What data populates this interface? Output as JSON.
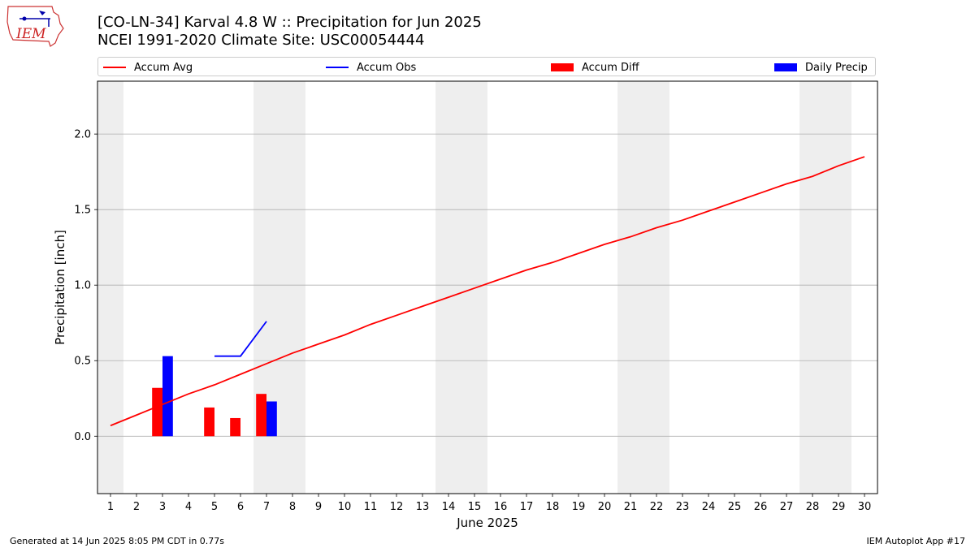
{
  "header": {
    "title_line1": "[CO-LN-34] Karval 4.8 W :: Precipitation for Jun 2025",
    "title_line2": "NCEI 1991-2020 Climate Site: USC00054444"
  },
  "logo": {
    "text": "IEM"
  },
  "footer": {
    "left": "Generated at 14 Jun 2025 8:05 PM CDT in 0.77s",
    "right": "IEM Autoplot App #17"
  },
  "colors": {
    "accum_avg": "#ff0000",
    "accum_obs": "#0000ff",
    "accum_diff": "#ff0000",
    "daily_precip": "#0000ff",
    "weekend_shade": "#eeeeee",
    "grid": "#b0b0b0"
  },
  "chart_data": {
    "type": "bar",
    "title": "[CO-LN-34] Karval 4.8 W :: Precipitation for Jun 2025",
    "subtitle": "NCEI 1991-2020 Climate Site: USC00054444",
    "xlabel": "June 2025",
    "ylabel": "Precipitation [inch]",
    "xlim": [
      0.5,
      30.5
    ],
    "ylim": [
      -0.38,
      2.35
    ],
    "yticks": [
      0.0,
      0.5,
      1.0,
      1.5,
      2.0
    ],
    "ytick_labels": [
      "0.0",
      "0.5",
      "1.0",
      "1.5",
      "2.0"
    ],
    "x": [
      1,
      2,
      3,
      4,
      5,
      6,
      7,
      8,
      9,
      10,
      11,
      12,
      13,
      14,
      15,
      16,
      17,
      18,
      19,
      20,
      21,
      22,
      23,
      24,
      25,
      26,
      27,
      28,
      29,
      30
    ],
    "grid": "horizontal",
    "legend_placement": "top",
    "weekend_days": [
      1,
      7,
      8,
      14,
      15,
      21,
      22,
      28,
      29
    ],
    "legend": [
      "Accum Avg",
      "Accum Obs",
      "Accum Diff",
      "Daily Precip"
    ],
    "series": [
      {
        "name": "Accum Avg",
        "kind": "line",
        "x": [
          1,
          2,
          3,
          4,
          5,
          6,
          7,
          8,
          9,
          10,
          11,
          12,
          13,
          14,
          15,
          16,
          17,
          18,
          19,
          20,
          21,
          22,
          23,
          24,
          25,
          26,
          27,
          28,
          29,
          30
        ],
        "values": [
          0.07,
          0.14,
          0.21,
          0.28,
          0.34,
          0.41,
          0.48,
          0.55,
          0.61,
          0.67,
          0.74,
          0.8,
          0.86,
          0.92,
          0.98,
          1.04,
          1.1,
          1.15,
          1.21,
          1.27,
          1.32,
          1.38,
          1.43,
          1.49,
          1.55,
          1.61,
          1.67,
          1.72,
          1.79,
          1.85
        ]
      },
      {
        "name": "Accum Obs",
        "kind": "line",
        "x": [
          5,
          6,
          7
        ],
        "values": [
          0.53,
          0.53,
          0.76
        ]
      },
      {
        "name": "Accum Diff",
        "kind": "bar",
        "x": [
          3,
          5,
          6,
          7
        ],
        "values": [
          0.32,
          0.19,
          0.12,
          0.28
        ]
      },
      {
        "name": "Daily Precip",
        "kind": "bar",
        "x": [
          3,
          7
        ],
        "values": [
          0.53,
          0.23
        ]
      }
    ]
  }
}
